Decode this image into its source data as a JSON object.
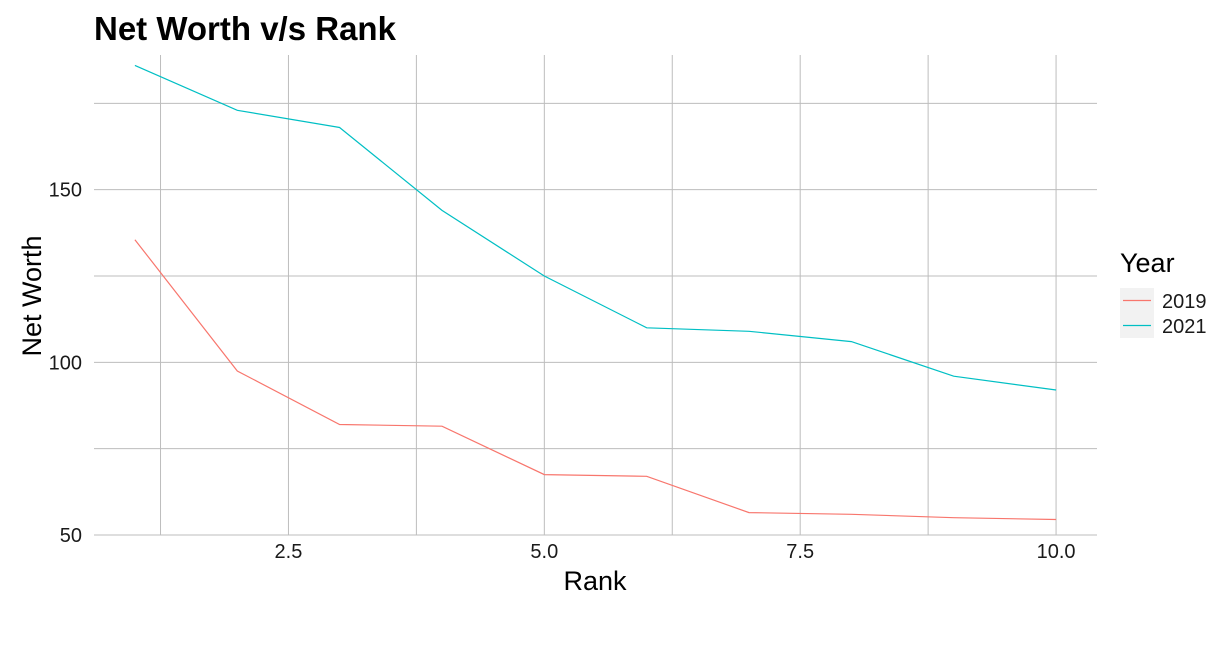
{
  "chart_data": {
    "type": "line",
    "title": "Net Worth v/s Rank",
    "xlabel": "Rank",
    "ylabel": "Net Worth",
    "xlim": [
      0.6,
      10.4
    ],
    "ylim": [
      50,
      189
    ],
    "x_ticks": [
      2.5,
      5.0,
      7.5,
      10.0
    ],
    "x_tick_labels": [
      "2.5",
      "5.0",
      "7.5",
      "10.0"
    ],
    "x_minor_ticks": [
      1.25,
      3.75,
      6.25,
      8.75
    ],
    "y_ticks": [
      50,
      100,
      150
    ],
    "y_tick_labels": [
      "50",
      "100",
      "150"
    ],
    "y_minor_ticks": [
      75,
      125,
      175
    ],
    "grid": true,
    "legend_title": "Year",
    "legend_position": "right",
    "x": [
      1,
      2,
      3,
      4,
      5,
      6,
      7,
      8,
      9,
      10
    ],
    "series": [
      {
        "name": "2019",
        "color": "#F8766D",
        "values": [
          135.5,
          97.5,
          82,
          81.5,
          67.5,
          67,
          56.5,
          56,
          55,
          54.5
        ]
      },
      {
        "name": "2021",
        "color": "#00BFC4",
        "values": [
          186,
          173,
          168,
          144,
          125,
          110,
          109,
          106,
          96,
          92
        ]
      }
    ]
  }
}
